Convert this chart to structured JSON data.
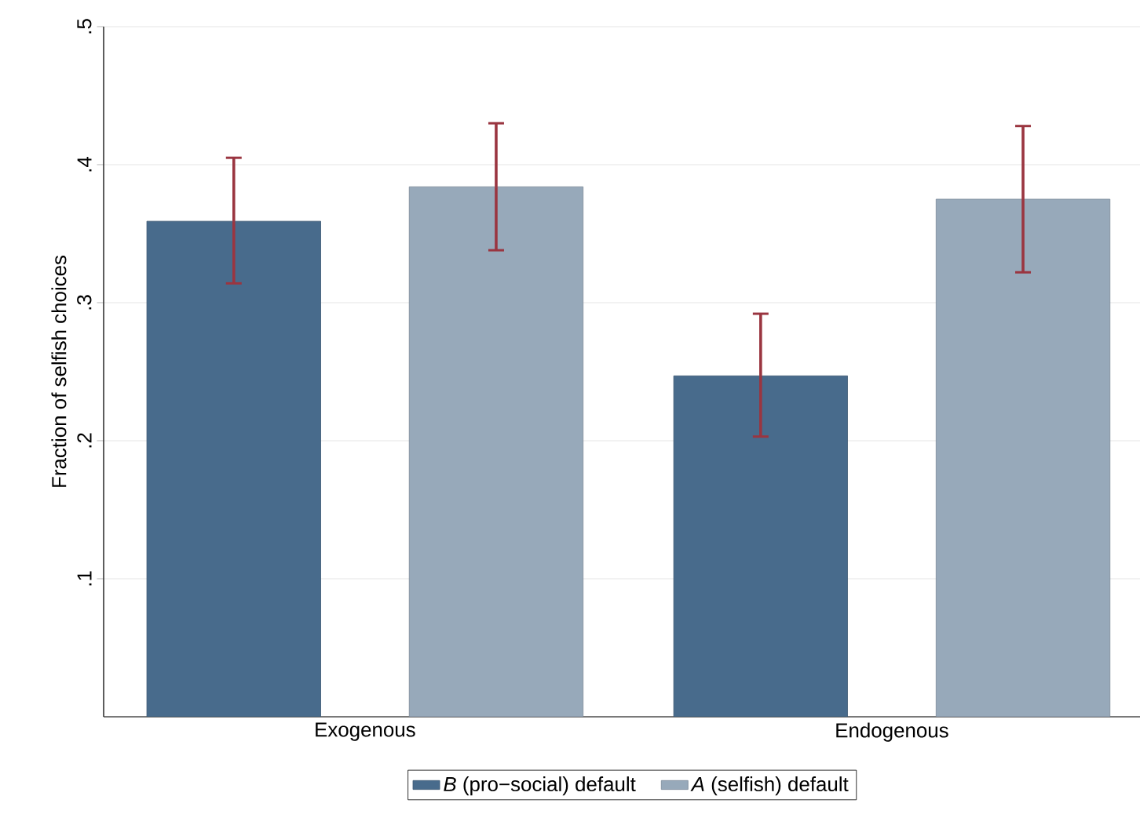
{
  "chart_data": {
    "type": "bar",
    "ylabel": "Fraction of selfish choices",
    "categories": [
      "Exogenous",
      "Endogenous"
    ],
    "series": [
      {
        "name": "*B* (pro−social) default",
        "color": "#486b8c",
        "values": [
          0.359,
          0.247
        ],
        "errors": [
          [
            0.314,
            0.405
          ],
          [
            0.203,
            0.292
          ]
        ]
      },
      {
        "name": "*A* (selfish) default",
        "color": "#97a9ba",
        "values": [
          0.384,
          0.375
        ],
        "errors": [
          [
            0.338,
            0.43
          ],
          [
            0.322,
            0.428
          ]
        ]
      }
    ],
    "ylim": [
      0,
      0.5
    ],
    "yticks": [
      {
        "value": 0.1,
        "label": ".1"
      },
      {
        "value": 0.2,
        "label": ".2"
      },
      {
        "value": 0.3,
        "label": ".3"
      },
      {
        "value": 0.4,
        "label": ".4"
      },
      {
        "value": 0.5,
        "label": ".5"
      }
    ],
    "grid": "y",
    "legend": "bottom"
  }
}
